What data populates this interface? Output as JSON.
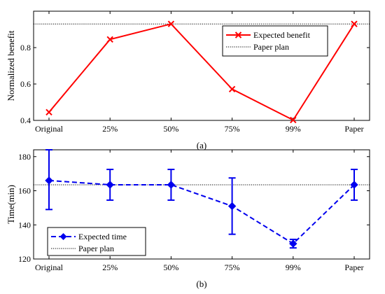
{
  "chart_data": [
    {
      "type": "line",
      "panel_label": "(a)",
      "categories": [
        "Original",
        "25%",
        "50%",
        "75%",
        "99%",
        "Paper"
      ],
      "ylabel": "Normalized benefit",
      "ylim": [
        0.4,
        1.0
      ],
      "yticks": [
        "0.4",
        "0.6",
        "0.8"
      ],
      "series": [
        {
          "name": "Expected benefit",
          "values": [
            0.445,
            0.845,
            0.93,
            0.572,
            0.402,
            0.93
          ],
          "color": "#ff0000",
          "style": "solid",
          "marker": "x"
        },
        {
          "name": "Paper plan",
          "constant": 0.93,
          "color": "#000000",
          "style": "dotted"
        }
      ],
      "legend_position": "upper-right",
      "grid": false
    },
    {
      "type": "line",
      "panel_label": "(b)",
      "categories": [
        "Original",
        "25%",
        "50%",
        "75%",
        "99%",
        "Paper"
      ],
      "ylabel": "Time(min)",
      "ylim": [
        120,
        184
      ],
      "yticks": [
        "120",
        "140",
        "160",
        "180"
      ],
      "series": [
        {
          "name": "Expected time",
          "values": [
            166,
            163.5,
            163.5,
            151,
            129,
            163.5
          ],
          "error_low": [
            149,
            154.5,
            154.5,
            134.5,
            126.5,
            154.5
          ],
          "error_high": [
            184,
            172.5,
            172.5,
            167.5,
            131.5,
            172.5
          ],
          "color": "#0000ee",
          "style": "dashed",
          "marker": "diamond"
        },
        {
          "name": "Paper plan",
          "constant": 163.5,
          "color": "#000000",
          "style": "dotted"
        }
      ],
      "legend_position": "lower-left",
      "grid": false
    }
  ]
}
